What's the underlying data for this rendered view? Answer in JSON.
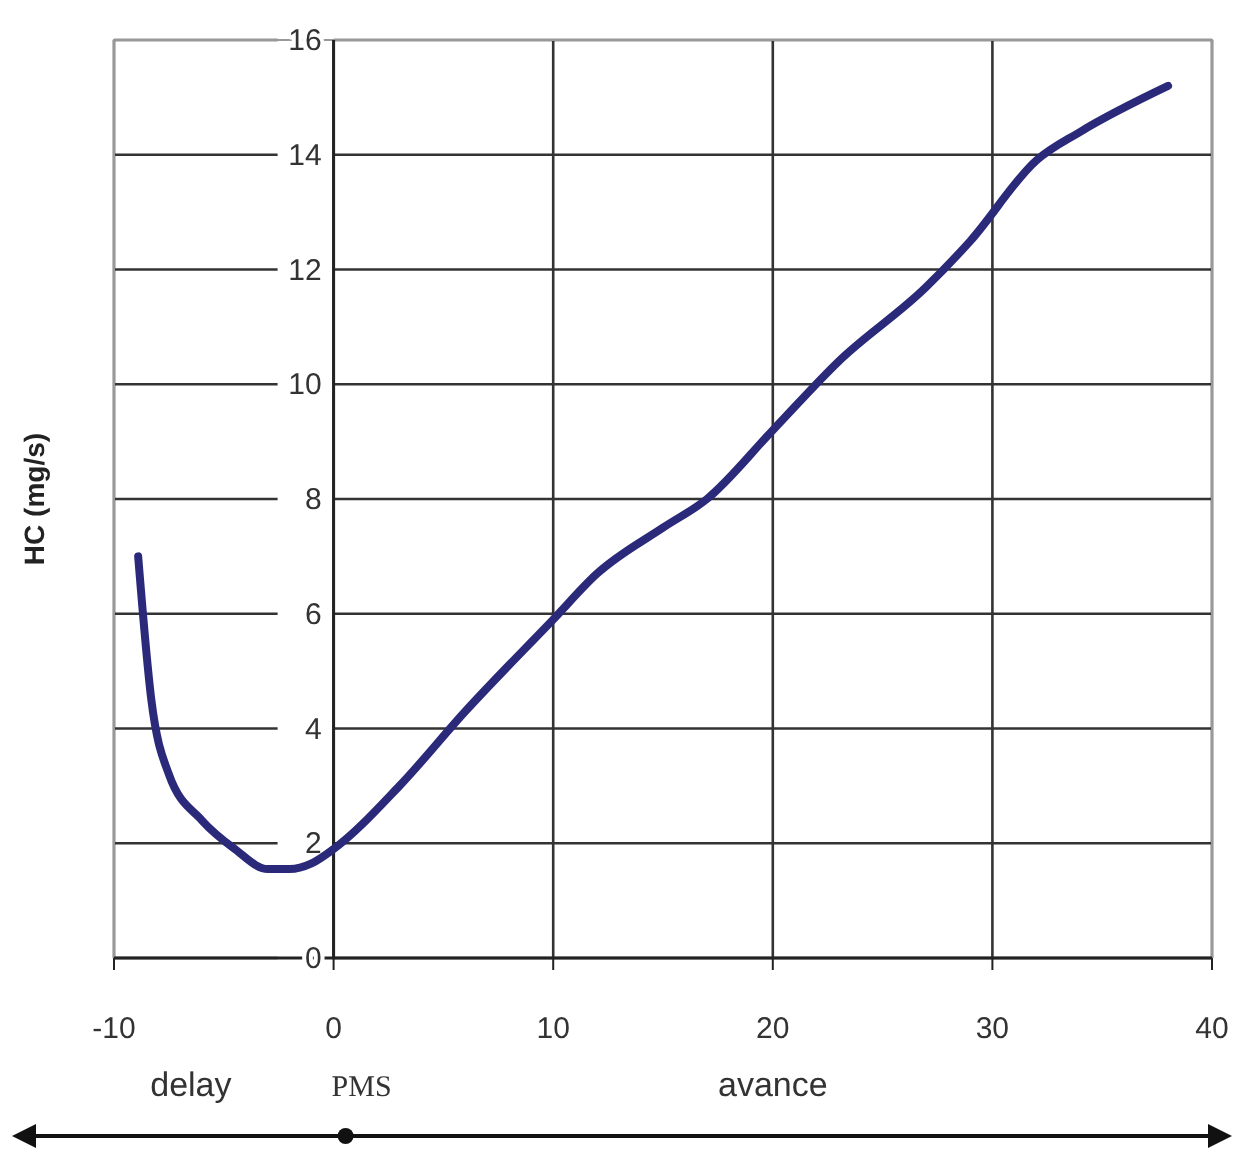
{
  "chart_data": {
    "type": "line",
    "ylabel": "HC (mg/s)",
    "x": [
      -8.9,
      -8.3,
      -7.5,
      -6,
      -4.5,
      -3,
      -2,
      -1,
      0,
      3,
      6,
      10,
      12,
      15,
      17,
      20,
      23,
      27,
      29,
      32,
      34,
      38
    ],
    "series": [
      {
        "color": "#2b2a7a",
        "values": [
          7,
          4.5,
          3.2,
          2.4,
          1.9,
          1.55,
          1.55,
          1.65,
          1.9,
          3,
          4.3,
          5.9,
          6.7,
          7.5,
          8,
          9.2,
          10.4,
          11.7,
          12.5,
          13.9,
          14.4,
          15.2
        ]
      }
    ],
    "xlim": [
      -10,
      40
    ],
    "xticks": [
      -10,
      0,
      10,
      20,
      30,
      40
    ],
    "ylim": [
      0,
      16
    ],
    "yticks": [
      0,
      2,
      4,
      6,
      8,
      10,
      12,
      14,
      16
    ],
    "grid": true,
    "marker": "none",
    "line_style": "solid",
    "annotations": [
      "delay",
      "PMS",
      "avance"
    ]
  }
}
